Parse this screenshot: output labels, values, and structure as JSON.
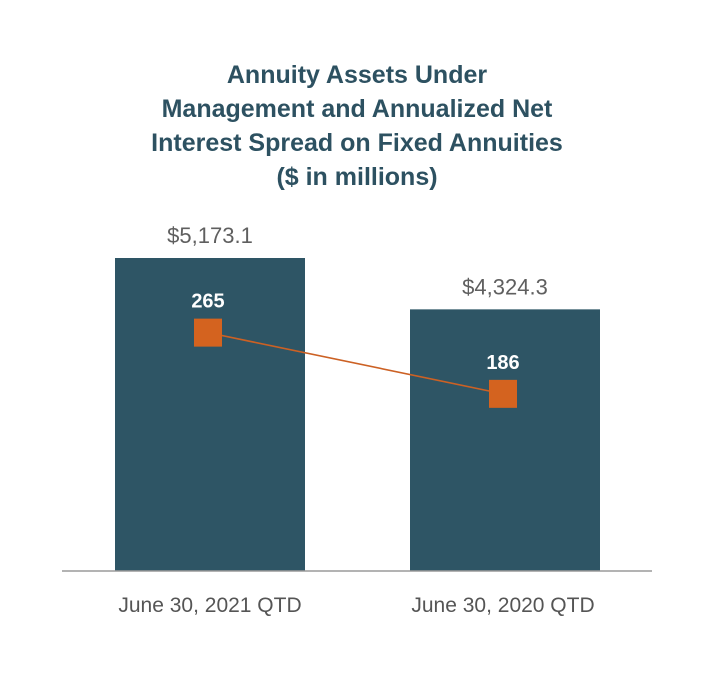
{
  "colors": {
    "title": "#2d5161",
    "bar": "#2e5565",
    "line": "#cc6124",
    "marker": "#d4631f",
    "value_label": "#5f5f5f",
    "line_label": "#ffffff",
    "axis": "#9a9a9a",
    "tick_label": "#555555"
  },
  "chart_data": {
    "type": "bar",
    "title_lines": [
      "Annuity Assets Under",
      "Management and Annualized Net",
      "Interest Spread on Fixed Annuities",
      "($ in millions)"
    ],
    "categories": [
      "June 30, 2021 QTD",
      "June 30, 2020 QTD"
    ],
    "series": [
      {
        "kind": "bar",
        "values": [
          5173.1,
          4324.3
        ],
        "labels": [
          "$5,173.1",
          "$4,324.3"
        ]
      },
      {
        "kind": "line",
        "marker": "square",
        "values": [
          265,
          186
        ],
        "labels": [
          "265",
          "186"
        ]
      }
    ],
    "ylim": [
      0,
      5173.1
    ],
    "line_ylim": [
      0,
      450
    ],
    "grid": false,
    "legend": "none"
  }
}
